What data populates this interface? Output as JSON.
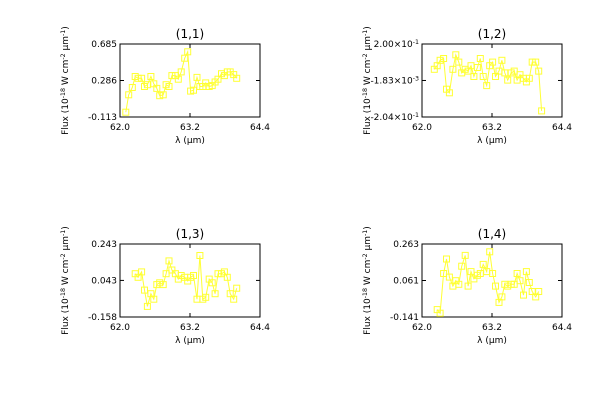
{
  "marker_color": "#ffff33",
  "line_color": "#000000",
  "marker": "square",
  "chart_data": [
    {
      "type": "line",
      "title": "(1,1)",
      "xlabel": "λ (μm)",
      "ylabel": "Flux (10^-18 W cm^-2 μm^-1)",
      "xlim": [
        62.0,
        64.4
      ],
      "ylim": [
        -0.113,
        0.685
      ],
      "xticks": [
        "62.0",
        "63.2",
        "64.4"
      ],
      "yticks": [
        {
          "label": "0.685",
          "value": 0.685
        },
        {
          "label": "0.286",
          "value": 0.286
        },
        {
          "label": "-0.113",
          "value": -0.113
        }
      ],
      "x": [
        62.1,
        62.15,
        62.21,
        62.26,
        62.31,
        62.37,
        62.42,
        62.47,
        62.53,
        62.58,
        62.63,
        62.68,
        62.74,
        62.79,
        62.84,
        62.89,
        62.95,
        63.0,
        63.05,
        63.11,
        63.16,
        63.21,
        63.26,
        63.32,
        63.37,
        63.42,
        63.47,
        63.53,
        63.58,
        63.63,
        63.68,
        63.74,
        63.79,
        63.84,
        63.89,
        63.95,
        64.0
      ],
      "y": [
        -0.06,
        0.13,
        0.21,
        0.33,
        0.31,
        0.31,
        0.22,
        0.24,
        0.33,
        0.25,
        0.2,
        0.12,
        0.13,
        0.24,
        0.22,
        0.34,
        0.34,
        0.3,
        0.38,
        0.53,
        0.6,
        0.17,
        0.18,
        0.32,
        0.22,
        0.22,
        0.26,
        0.22,
        0.23,
        0.27,
        0.3,
        0.36,
        0.34,
        0.38,
        0.38,
        0.35,
        0.31
      ]
    },
    {
      "type": "line",
      "title": "(1,2)",
      "xlabel": "λ (μm)",
      "ylabel": "Flux (10^-18 W cm^-2 μm^-1)",
      "xlim": [
        62.0,
        64.4
      ],
      "ylim": [
        -0.204,
        0.2
      ],
      "xticks": [
        "62.0",
        "63.2",
        "64.4"
      ],
      "yticks": [
        {
          "label": "2.00×10^-1",
          "value": 0.2
        },
        {
          "label": "-1.83×10^-3",
          "value": -0.00183
        },
        {
          "label": "-2.04×10^-1",
          "value": -0.204
        }
      ],
      "x": [
        62.21,
        62.26,
        62.31,
        62.37,
        62.42,
        62.47,
        62.53,
        62.58,
        62.63,
        62.68,
        62.74,
        62.79,
        62.84,
        62.89,
        62.95,
        63.0,
        63.05,
        63.11,
        63.16,
        63.21,
        63.26,
        63.32,
        63.37,
        63.42,
        63.47,
        63.53,
        63.58,
        63.63,
        63.68,
        63.74,
        63.79,
        63.84,
        63.89,
        63.95,
        64.0,
        64.05
      ],
      "y": [
        0.06,
        0.08,
        0.11,
        0.12,
        -0.05,
        -0.07,
        0.06,
        0.14,
        0.1,
        0.04,
        0.06,
        0.05,
        0.08,
        0.02,
        0.07,
        0.12,
        0.02,
        -0.03,
        0.08,
        0.1,
        0.02,
        0.05,
        0.11,
        0.04,
        0.0,
        0.04,
        0.05,
        0.0,
        0.03,
        0.01,
        -0.01,
        0.01,
        0.1,
        0.1,
        0.05,
        -0.17
      ]
    },
    {
      "type": "line",
      "title": "(1,3)",
      "xlabel": "λ (μm)",
      "ylabel": "Flux (10^-18 W cm^-2 μm^-1)",
      "xlim": [
        62.0,
        64.4
      ],
      "ylim": [
        -0.158,
        0.243
      ],
      "xticks": [
        "62.0",
        "63.2",
        "64.4"
      ],
      "yticks": [
        {
          "label": "0.243",
          "value": 0.243
        },
        {
          "label": "0.043",
          "value": 0.043
        },
        {
          "label": "-0.158",
          "value": -0.158
        }
      ],
      "x": [
        62.26,
        62.31,
        62.37,
        62.42,
        62.47,
        62.53,
        62.58,
        62.63,
        62.68,
        62.74,
        62.79,
        62.84,
        62.89,
        62.95,
        63.0,
        63.05,
        63.11,
        63.16,
        63.21,
        63.26,
        63.32,
        63.37,
        63.42,
        63.47,
        63.53,
        63.58,
        63.63,
        63.68,
        63.74,
        63.79,
        63.84,
        63.89,
        63.95,
        64.0
      ],
      "y": [
        0.08,
        0.06,
        0.09,
        -0.01,
        -0.1,
        -0.03,
        -0.06,
        0.02,
        0.03,
        0.02,
        0.08,
        0.15,
        0.1,
        0.08,
        0.05,
        0.07,
        0.06,
        0.04,
        0.06,
        0.07,
        -0.06,
        0.18,
        -0.06,
        -0.05,
        0.05,
        0.03,
        -0.03,
        0.08,
        0.08,
        0.09,
        0.06,
        -0.03,
        -0.06,
        0.0
      ]
    },
    {
      "type": "line",
      "title": "(1,4)",
      "xlabel": "λ (μm)",
      "ylabel": "Flux (10^-18 W cm^-2 μm^-1)",
      "xlim": [
        62.0,
        64.4
      ],
      "ylim": [
        -0.141,
        0.263
      ],
      "xticks": [
        "62.0",
        "63.2",
        "64.4"
      ],
      "yticks": [
        {
          "label": "0.263",
          "value": 0.263
        },
        {
          "label": "0.061",
          "value": 0.061
        },
        {
          "label": "-0.141",
          "value": -0.141
        }
      ],
      "x": [
        62.26,
        62.31,
        62.37,
        62.42,
        62.47,
        62.53,
        62.58,
        62.63,
        62.68,
        62.74,
        62.79,
        62.84,
        62.89,
        62.95,
        63.0,
        63.05,
        63.11,
        63.16,
        63.21,
        63.26,
        63.32,
        63.37,
        63.42,
        63.47,
        63.53,
        63.58,
        63.63,
        63.68,
        63.74,
        63.79,
        63.84,
        63.89,
        63.95,
        64.0
      ],
      "y": [
        -0.1,
        -0.12,
        0.1,
        0.18,
        0.08,
        0.03,
        0.06,
        0.04,
        0.14,
        0.2,
        0.03,
        0.11,
        0.07,
        0.09,
        0.1,
        0.15,
        0.11,
        0.22,
        0.1,
        0.03,
        -0.06,
        -0.03,
        0.04,
        0.03,
        0.04,
        0.04,
        0.1,
        0.06,
        -0.02,
        0.11,
        0.05,
        0.0,
        -0.03,
        0.0
      ]
    }
  ]
}
